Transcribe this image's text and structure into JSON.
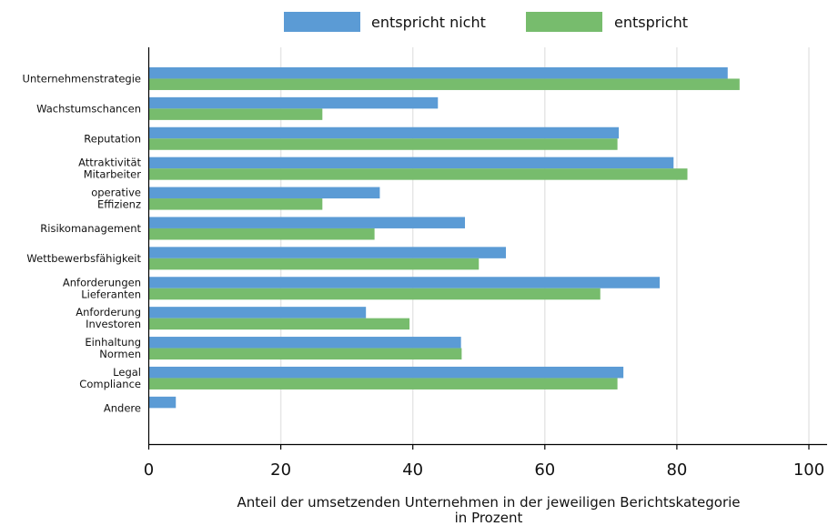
{
  "chart_data": {
    "type": "bar",
    "orientation": "horizontal",
    "categories": [
      [
        "Unternehmenstrategie"
      ],
      [
        "Wachstumschancen"
      ],
      [
        "Reputation"
      ],
      [
        "Attraktivität",
        "Mitarbeiter"
      ],
      [
        "operative",
        "Effizienz"
      ],
      [
        "Risikomanagement"
      ],
      [
        "Wettbewerbsfähigkeit"
      ],
      [
        "Anforderungen",
        "Lieferanten"
      ],
      [
        "Anforderung",
        "Investoren"
      ],
      [
        "Einhaltung",
        "Normen"
      ],
      [
        "Legal",
        "Compliance"
      ],
      [
        "Andere"
      ]
    ],
    "series": [
      {
        "name": "entspricht nicht",
        "color": "#5b9bd5",
        "values": [
          87.7,
          43.8,
          71.2,
          79.5,
          35.0,
          47.9,
          54.1,
          77.4,
          32.9,
          47.3,
          71.9,
          4.1
        ]
      },
      {
        "name": "entspricht",
        "color": "#77bc6d",
        "values": [
          89.5,
          26.3,
          71.0,
          81.6,
          26.3,
          34.2,
          50.0,
          68.4,
          39.5,
          47.4,
          71.0,
          null
        ]
      }
    ],
    "xlim": [
      0,
      100
    ],
    "xticks": [
      0,
      20,
      40,
      60,
      80,
      100
    ],
    "xlabel": [
      "Anteil der umsetzenden Unternehmen in der jeweiligen Berichtskategorie",
      "in Prozent"
    ],
    "ylabel": "",
    "grid": "vertical",
    "legend_position": "top"
  }
}
